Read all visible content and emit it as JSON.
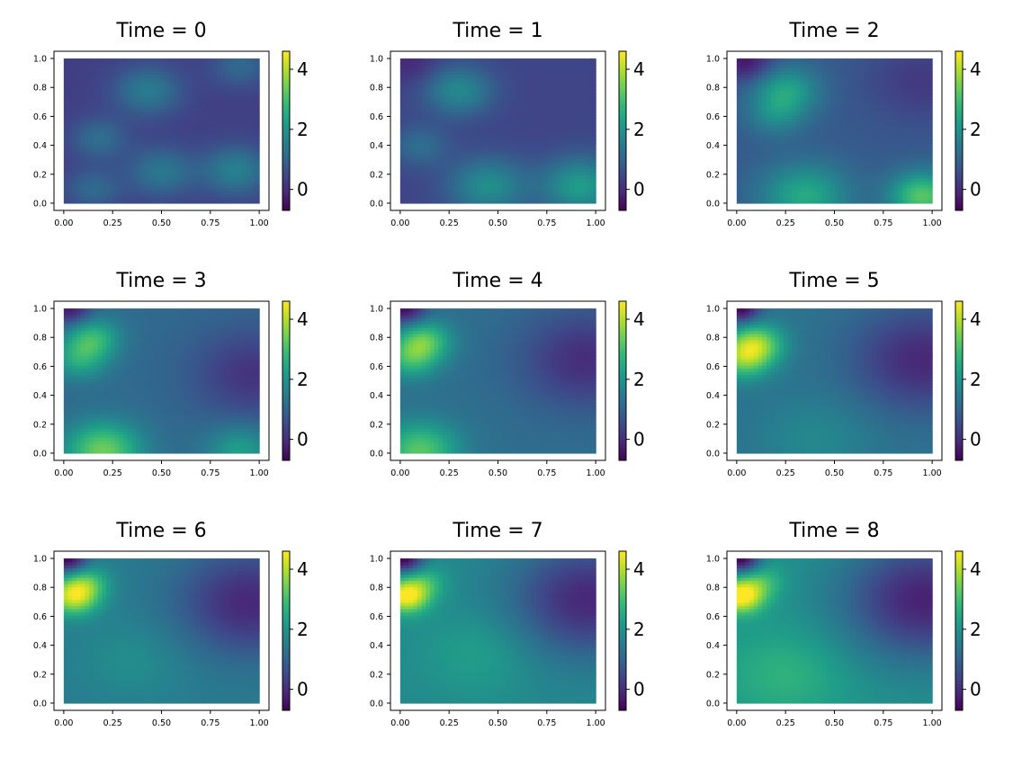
{
  "figure": {
    "colormap": "viridis",
    "colors": {
      "background": "#ffffff",
      "axis": "#000000",
      "viridis_stops": [
        "#440154",
        "#482878",
        "#3e4989",
        "#31688e",
        "#26828e",
        "#1f9e89",
        "#35b779",
        "#6ece58",
        "#b5de2b",
        "#fde725"
      ]
    }
  },
  "chart_data": [
    {
      "type": "heatmap",
      "title": "Time = 0",
      "xlabel": "",
      "ylabel": "",
      "xlim": [
        -0.05,
        1.05
      ],
      "ylim": [
        -0.05,
        1.05
      ],
      "x_ticks": [
        "0.00",
        "0.25",
        "0.50",
        "0.75",
        "1.00"
      ],
      "y_ticks": [
        "0.0",
        "0.2",
        "0.4",
        "0.6",
        "0.8",
        "1.0"
      ],
      "colorbar": {
        "range": [
          -0.7,
          4.6
        ],
        "ticks": [
          "0",
          "2",
          "4"
        ]
      },
      "base": 0.3,
      "hotspots": [
        {
          "x": 0.43,
          "y": 0.78,
          "value": 1.2,
          "r": 0.12
        },
        {
          "x": 0.18,
          "y": 0.45,
          "value": 0.9,
          "r": 0.1
        },
        {
          "x": 0.15,
          "y": 0.1,
          "value": 0.8,
          "r": 0.1
        },
        {
          "x": 0.5,
          "y": 0.22,
          "value": 1.1,
          "r": 0.12
        },
        {
          "x": 0.88,
          "y": 0.23,
          "value": 1.3,
          "r": 0.12
        },
        {
          "x": 0.9,
          "y": 0.95,
          "value": 0.8,
          "r": 0.1
        }
      ]
    },
    {
      "type": "heatmap",
      "title": "Time = 1",
      "xlabel": "",
      "ylabel": "",
      "xlim": [
        -0.05,
        1.05
      ],
      "ylim": [
        -0.05,
        1.05
      ],
      "x_ticks": [
        "0.00",
        "0.25",
        "0.50",
        "0.75",
        "1.00"
      ],
      "y_ticks": [
        "0.0",
        "0.2",
        "0.4",
        "0.6",
        "0.8",
        "1.0"
      ],
      "colorbar": {
        "range": [
          -0.7,
          4.6
        ],
        "ticks": [
          "0",
          "2",
          "4"
        ]
      },
      "base": 0.4,
      "hotspots": [
        {
          "x": 0.3,
          "y": 0.78,
          "value": 1.4,
          "r": 0.12
        },
        {
          "x": 0.1,
          "y": 0.4,
          "value": 0.8,
          "r": 0.1
        },
        {
          "x": 0.45,
          "y": 0.12,
          "value": 1.5,
          "r": 0.14
        },
        {
          "x": 0.92,
          "y": 0.12,
          "value": 1.8,
          "r": 0.14
        },
        {
          "x": 0.05,
          "y": 0.98,
          "value": -0.5,
          "r": 0.1
        }
      ]
    },
    {
      "type": "heatmap",
      "title": "Time = 2",
      "xlabel": "",
      "ylabel": "",
      "xlim": [
        -0.05,
        1.05
      ],
      "ylim": [
        -0.05,
        1.05
      ],
      "x_ticks": [
        "0.00",
        "0.25",
        "0.50",
        "0.75",
        "1.00"
      ],
      "y_ticks": [
        "0.0",
        "0.2",
        "0.4",
        "0.6",
        "0.8",
        "1.0"
      ],
      "colorbar": {
        "range": [
          -0.7,
          4.6
        ],
        "ticks": [
          "0",
          "2",
          "4"
        ]
      },
      "base": 0.8,
      "hotspots": [
        {
          "x": 0.25,
          "y": 0.78,
          "value": 1.6,
          "r": 0.12
        },
        {
          "x": 0.2,
          "y": 0.6,
          "value": 0.8,
          "r": 0.1
        },
        {
          "x": 0.35,
          "y": 0.05,
          "value": 1.7,
          "r": 0.16
        },
        {
          "x": 0.95,
          "y": 0.05,
          "value": 2.4,
          "r": 0.12
        },
        {
          "x": 0.05,
          "y": 0.98,
          "value": -1.2,
          "r": 0.1
        },
        {
          "x": 0.95,
          "y": 0.85,
          "value": -0.6,
          "r": 0.2
        }
      ]
    },
    {
      "type": "heatmap",
      "title": "Time = 3",
      "xlabel": "",
      "ylabel": "",
      "xlim": [
        -0.05,
        1.05
      ],
      "ylim": [
        -0.05,
        1.05
      ],
      "x_ticks": [
        "0.00",
        "0.25",
        "0.50",
        "0.75",
        "1.00"
      ],
      "y_ticks": [
        "0.0",
        "0.2",
        "0.4",
        "0.6",
        "0.8",
        "1.0"
      ],
      "colorbar": {
        "range": [
          -0.7,
          4.6
        ],
        "ticks": [
          "0",
          "2",
          "4"
        ]
      },
      "base": 1.1,
      "hotspots": [
        {
          "x": 0.15,
          "y": 0.8,
          "value": 1.6,
          "r": 0.1
        },
        {
          "x": 0.08,
          "y": 0.65,
          "value": 1.3,
          "r": 0.1
        },
        {
          "x": 0.2,
          "y": 0.02,
          "value": 2.3,
          "r": 0.14
        },
        {
          "x": 0.9,
          "y": 0.02,
          "value": 1.2,
          "r": 0.12
        },
        {
          "x": 0.03,
          "y": 1.0,
          "value": -1.5,
          "r": 0.08
        },
        {
          "x": 0.97,
          "y": 0.55,
          "value": -1.0,
          "r": 0.22
        }
      ]
    },
    {
      "type": "heatmap",
      "title": "Time = 4",
      "xlabel": "",
      "ylabel": "",
      "xlim": [
        -0.05,
        1.05
      ],
      "ylim": [
        -0.05,
        1.05
      ],
      "x_ticks": [
        "0.00",
        "0.25",
        "0.50",
        "0.75",
        "1.00"
      ],
      "y_ticks": [
        "0.0",
        "0.2",
        "0.4",
        "0.6",
        "0.8",
        "1.0"
      ],
      "colorbar": {
        "range": [
          -0.7,
          4.6
        ],
        "ticks": [
          "0",
          "2",
          "4"
        ]
      },
      "base": 1.2,
      "hotspots": [
        {
          "x": 0.12,
          "y": 0.78,
          "value": 1.9,
          "r": 0.1
        },
        {
          "x": 0.05,
          "y": 0.65,
          "value": 1.4,
          "r": 0.1
        },
        {
          "x": 0.1,
          "y": 0.02,
          "value": 2.0,
          "r": 0.14
        },
        {
          "x": 0.02,
          "y": 1.0,
          "value": -1.8,
          "r": 0.08
        },
        {
          "x": 0.95,
          "y": 0.65,
          "value": -1.2,
          "r": 0.24
        }
      ]
    },
    {
      "type": "heatmap",
      "title": "Time = 5",
      "xlabel": "",
      "ylabel": "",
      "xlim": [
        -0.05,
        1.05
      ],
      "ylim": [
        -0.05,
        1.05
      ],
      "x_ticks": [
        "0.00",
        "0.25",
        "0.50",
        "0.75",
        "1.00"
      ],
      "y_ticks": [
        "0.0",
        "0.2",
        "0.4",
        "0.6",
        "0.8",
        "1.0"
      ],
      "colorbar": {
        "range": [
          -0.7,
          4.6
        ],
        "ticks": [
          "0",
          "2",
          "4"
        ]
      },
      "base": 1.3,
      "hotspots": [
        {
          "x": 0.1,
          "y": 0.76,
          "value": 2.2,
          "r": 0.1
        },
        {
          "x": 0.03,
          "y": 0.65,
          "value": 1.8,
          "r": 0.1
        },
        {
          "x": 0.02,
          "y": 1.0,
          "value": -2.0,
          "r": 0.07
        },
        {
          "x": 0.95,
          "y": 0.65,
          "value": -1.4,
          "r": 0.25
        },
        {
          "x": 0.4,
          "y": 0.1,
          "value": 0.5,
          "r": 0.2
        }
      ]
    },
    {
      "type": "heatmap",
      "title": "Time = 6",
      "xlabel": "",
      "ylabel": "",
      "xlim": [
        -0.05,
        1.05
      ],
      "ylim": [
        -0.05,
        1.05
      ],
      "x_ticks": [
        "0.00",
        "0.25",
        "0.50",
        "0.75",
        "1.00"
      ],
      "y_ticks": [
        "0.0",
        "0.2",
        "0.4",
        "0.6",
        "0.8",
        "1.0"
      ],
      "colorbar": {
        "range": [
          -0.7,
          4.6
        ],
        "ticks": [
          "0",
          "2",
          "4"
        ]
      },
      "base": 1.5,
      "hotspots": [
        {
          "x": 0.05,
          "y": 0.74,
          "value": 2.7,
          "r": 0.09
        },
        {
          "x": 0.12,
          "y": 0.84,
          "value": 1.2,
          "r": 0.08
        },
        {
          "x": 0.02,
          "y": 1.0,
          "value": -2.2,
          "r": 0.07
        },
        {
          "x": 0.95,
          "y": 0.7,
          "value": -1.6,
          "r": 0.26
        },
        {
          "x": 0.35,
          "y": 0.3,
          "value": 0.4,
          "r": 0.2
        }
      ]
    },
    {
      "type": "heatmap",
      "title": "Time = 7",
      "xlabel": "",
      "ylabel": "",
      "xlim": [
        -0.05,
        1.05
      ],
      "ylim": [
        -0.05,
        1.05
      ],
      "x_ticks": [
        "0.00",
        "0.25",
        "0.50",
        "0.75",
        "1.00"
      ],
      "y_ticks": [
        "0.0",
        "0.2",
        "0.4",
        "0.6",
        "0.8",
        "1.0"
      ],
      "colorbar": {
        "range": [
          -0.7,
          4.6
        ],
        "ticks": [
          "0",
          "2",
          "4"
        ]
      },
      "base": 1.8,
      "hotspots": [
        {
          "x": 0.03,
          "y": 0.74,
          "value": 2.8,
          "r": 0.08
        },
        {
          "x": 0.12,
          "y": 0.84,
          "value": 1.0,
          "r": 0.08
        },
        {
          "x": 0.02,
          "y": 1.0,
          "value": -2.5,
          "r": 0.07
        },
        {
          "x": 0.96,
          "y": 0.72,
          "value": -1.9,
          "r": 0.28
        },
        {
          "x": 0.4,
          "y": 0.35,
          "value": 0.5,
          "r": 0.2
        }
      ]
    },
    {
      "type": "heatmap",
      "title": "Time = 8",
      "xlabel": "",
      "ylabel": "",
      "xlim": [
        -0.05,
        1.05
      ],
      "ylim": [
        -0.05,
        1.05
      ],
      "x_ticks": [
        "0.00",
        "0.25",
        "0.50",
        "0.75",
        "1.00"
      ],
      "y_ticks": [
        "0.0",
        "0.2",
        "0.4",
        "0.6",
        "0.8",
        "1.0"
      ],
      "colorbar": {
        "range": [
          -0.7,
          4.6
        ],
        "ticks": [
          "0",
          "2",
          "4"
        ]
      },
      "base": 2.0,
      "hotspots": [
        {
          "x": 0.02,
          "y": 0.74,
          "value": 2.8,
          "r": 0.08
        },
        {
          "x": 0.12,
          "y": 0.84,
          "value": 1.0,
          "r": 0.08
        },
        {
          "x": 0.02,
          "y": 1.0,
          "value": -2.7,
          "r": 0.07
        },
        {
          "x": 0.96,
          "y": 0.72,
          "value": -2.2,
          "r": 0.3
        },
        {
          "x": 0.25,
          "y": 0.2,
          "value": 0.7,
          "r": 0.22
        }
      ]
    }
  ]
}
